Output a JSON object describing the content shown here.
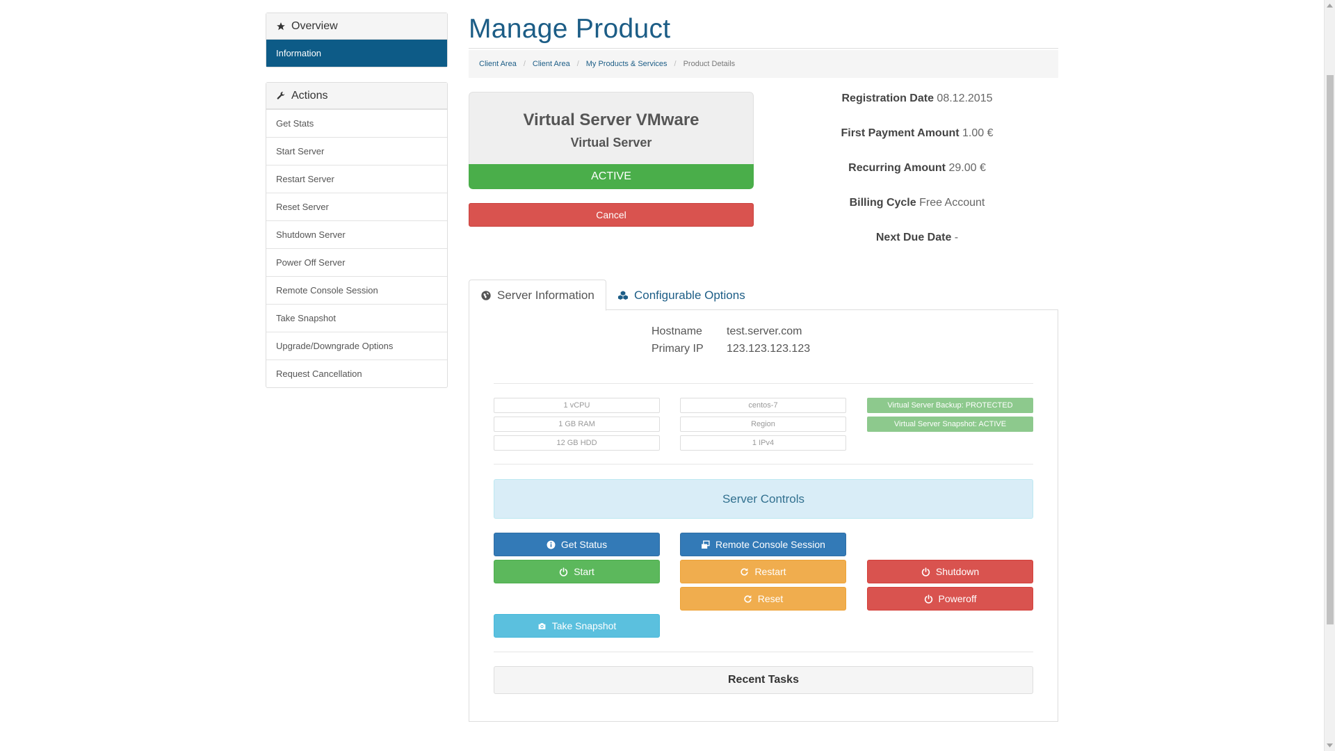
{
  "sidebar": {
    "overview_title": "Overview",
    "information_label": "Information",
    "actions_title": "Actions",
    "actions": [
      "Get Stats",
      "Start Server",
      "Restart Server",
      "Reset Server",
      "Shutdown Server",
      "Power Off Server",
      "Remote Console Session",
      "Take Snapshot",
      "Upgrade/Downgrade Options",
      "Request Cancellation"
    ]
  },
  "page_title": "Manage Product",
  "breadcrumb": [
    "Client Area",
    "Client Area",
    "My Products & Services",
    "Product Details"
  ],
  "product": {
    "name": "Virtual Server VMware",
    "type": "Virtual Server",
    "status": "ACTIVE",
    "cancel_label": "Cancel"
  },
  "details": [
    {
      "label": "Registration Date",
      "value": "08.12.2015"
    },
    {
      "label": "First Payment Amount",
      "value": "1.00 €"
    },
    {
      "label": "Recurring Amount",
      "value": "29.00 €"
    },
    {
      "label": "Billing Cycle",
      "value": "Free Account"
    },
    {
      "label": "Next Due Date",
      "value": "-"
    }
  ],
  "tabs": {
    "server_info": "Server Information",
    "config_options": "Configurable Options"
  },
  "server": {
    "hostname_label": "Hostname",
    "hostname": "test.server.com",
    "ip_label": "Primary IP",
    "ip": "123.123.123.123"
  },
  "specs": {
    "col1": [
      "1 vCPU",
      "1 GB RAM",
      "12 GB HDD"
    ],
    "col2": [
      "centos-7",
      "Region",
      "1 IPv4"
    ],
    "badges": [
      "Virtual Server Backup: PROTECTED",
      "Virtual Server Snapshot: ACTIVE"
    ]
  },
  "controls": {
    "title": "Server Controls",
    "get_status": "Get Status",
    "remote_console": "Remote Console Session",
    "start": "Start",
    "restart": "Restart",
    "shutdown": "Shutdown",
    "reset": "Reset",
    "poweroff": "Poweroff",
    "take_snapshot": "Take Snapshot"
  },
  "recent_tasks": "Recent Tasks",
  "colors": {
    "brand": "#1c5d86",
    "active": "#4aae4a",
    "danger": "#d9534f",
    "warning": "#f0ad4e",
    "primary": "#337ab7",
    "info": "#5bc0de"
  }
}
